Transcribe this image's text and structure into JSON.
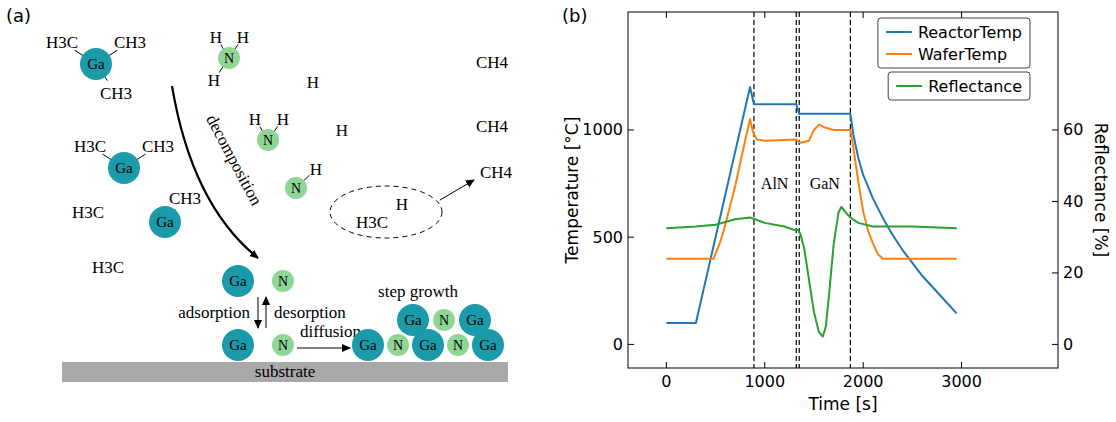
{
  "panel_labels": [
    "(a)",
    "(b)"
  ],
  "diagram": {
    "molecules": [
      {
        "atom": "Ga",
        "ligands": [
          "H3C",
          "CH3",
          "CH3"
        ]
      },
      {
        "atom": "N",
        "ligands": [
          "H",
          "H",
          "H"
        ]
      },
      {
        "atom": "N",
        "ligands": [
          "H",
          "H"
        ]
      },
      {
        "atom": "Ga",
        "ligands": [
          "H3C",
          "CH3"
        ]
      },
      {
        "atom": "N",
        "ligands": [
          "H"
        ]
      },
      {
        "atom": "Ga",
        "ligands": [
          "CH3"
        ]
      }
    ],
    "free_species": [
      "CH4",
      "H",
      "H",
      "CH4",
      "H3C",
      "H3C"
    ],
    "pair": [
      "H3C",
      "H"
    ],
    "product": "CH4",
    "decomposition": "decomposition",
    "adatoms": [
      "Ga",
      "N"
    ],
    "surface_atoms": [
      "Ga",
      "N"
    ],
    "adsorption": "adsorption",
    "desorption": "desorption",
    "diffusion": "diffusion",
    "step_growth": "step growth",
    "island": [
      [
        "Ga",
        "N",
        "Ga"
      ],
      [
        "Ga",
        "N",
        "Ga",
        "N",
        "Ga"
      ]
    ],
    "substrate": "substrate"
  },
  "chart_data": {
    "type": "line",
    "xlabel": "Time [s]",
    "ylabel": "Temperature [°C]",
    "y2label": "Reflectance [%]",
    "xlim": [
      -390,
      3980
    ],
    "ylim": [
      -110,
      1550
    ],
    "y2lim": [
      -6.6,
      93
    ],
    "xticks": [
      0,
      1000,
      2000,
      3000
    ],
    "yticks": [
      0,
      500,
      1000
    ],
    "y2ticks": [
      0,
      20,
      40,
      60
    ],
    "grid": false,
    "legend": "upper right",
    "series": [
      {
        "name": "ReactorTemp",
        "color": "#1f77b4",
        "x": [
          0,
          300,
          350,
          400,
          450,
          500,
          600,
          700,
          800,
          850,
          890,
          1320,
          1350,
          1870,
          1900,
          1950,
          2000,
          2100,
          2200,
          2300,
          2400,
          2500,
          2600,
          2700,
          2800,
          2950
        ],
        "values": [
          100,
          100,
          200,
          300,
          400,
          500,
          700,
          900,
          1100,
          1200,
          1120,
          1120,
          1075,
          1075,
          980,
          870,
          790,
          680,
          590,
          510,
          440,
          380,
          320,
          270,
          220,
          145
        ]
      },
      {
        "name": "WaferTemp",
        "color": "#ff7f0e",
        "x": [
          0,
          480,
          550,
          600,
          700,
          800,
          850,
          880,
          920,
          1000,
          1320,
          1360,
          1450,
          1500,
          1550,
          1620,
          1700,
          1870,
          1900,
          1950,
          2000,
          2050,
          2100,
          2150,
          2200,
          2950
        ],
        "values": [
          400,
          400,
          480,
          560,
          740,
          950,
          1050,
          990,
          955,
          950,
          955,
          940,
          950,
          1000,
          1025,
          1010,
          1000,
          1000,
          920,
          760,
          620,
          530,
          470,
          420,
          400,
          400
        ]
      },
      {
        "name": "Reflectance",
        "color": "#2ca02c",
        "axis": "y2",
        "x": [
          0,
          300,
          500,
          700,
          850,
          900,
          1000,
          1200,
          1300,
          1340,
          1360,
          1400,
          1450,
          1500,
          1550,
          1590,
          1620,
          1650,
          1700,
          1750,
          1780,
          1820,
          1870,
          1950,
          2100,
          2500,
          2950
        ],
        "values": [
          32.5,
          33,
          33.5,
          35,
          35.5,
          35,
          34,
          33,
          32,
          32,
          31,
          27,
          18,
          9,
          3.5,
          2.2,
          5,
          13,
          28,
          37,
          38.5,
          37,
          35.5,
          34,
          33,
          33,
          32.5
        ]
      }
    ],
    "vlines": [
      890,
      1320,
      1350,
      1870
    ],
    "annotations": [
      {
        "text": "AlN",
        "x": 1100,
        "y": 750
      },
      {
        "text": "GaN",
        "x": 1610,
        "y": 750
      }
    ]
  }
}
